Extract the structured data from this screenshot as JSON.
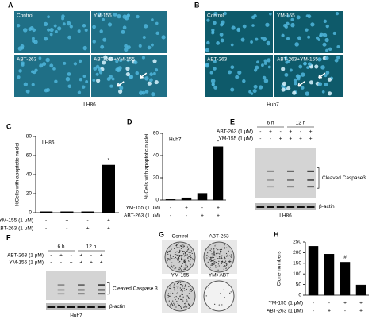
{
  "panel_labels": [
    "A",
    "B",
    "C",
    "D",
    "E",
    "F",
    "G",
    "H"
  ],
  "A": {
    "images": [
      "Control",
      "YM-155",
      "ABT-263",
      "ABT-263+YM-155"
    ],
    "cell_line": "LH86"
  },
  "B": {
    "images": [
      "Control",
      "YM-155",
      "ABT-263",
      "ABT-263+YM-155"
    ],
    "cell_line": "Huh7"
  },
  "E": {
    "treatments": [
      {
        "name": "ABT-263 (1 μM)",
        "signs": [
          "-",
          "+",
          "-",
          "+",
          "-",
          "+"
        ]
      },
      {
        "name": "YM-155 (1 μM)",
        "signs": [
          "-",
          "-",
          "+",
          "+",
          "+",
          "+"
        ]
      }
    ],
    "timepoints": [
      "6 h",
      "12 h"
    ],
    "bands": [
      "Cleaved Caspase3",
      "β-actin"
    ],
    "cell_line": "LH86"
  },
  "F": {
    "treatments": [
      {
        "name": "ABT-263 (1 μM)",
        "signs": [
          "-",
          "+",
          "-",
          "+",
          "-",
          "+"
        ]
      },
      {
        "name": "YM-155 (1 μM)",
        "signs": [
          "-",
          "-",
          "+",
          "+",
          "+",
          "+"
        ]
      }
    ],
    "timepoints": [
      "6 h",
      "12 h"
    ],
    "bands": [
      "Cleaved Caspase 3",
      "β-actin"
    ],
    "cell_line": "Huh7"
  },
  "G": {
    "plates": [
      "Control",
      "ABT-263",
      "YM-155",
      "YM+ABT"
    ]
  },
  "chart_data": [
    {
      "type": "bar",
      "inset_label": "LH86",
      "y_label": "%Cells with apoptotic nuclei",
      "categories": [
        null,
        null,
        null,
        null
      ],
      "values": [
        1,
        1,
        1,
        50
      ],
      "value_annotations": [
        null,
        null,
        null,
        "*"
      ],
      "color": "#000000",
      "ylim": [
        0,
        80
      ],
      "yticks": [
        0,
        20,
        40,
        60,
        80
      ],
      "conditions": [
        {
          "name": "YM-155 (1 μM)",
          "signs": [
            "-",
            "+",
            "-",
            "+"
          ]
        },
        {
          "name": "ABT-263 (1 μM)",
          "signs": [
            "-",
            "-",
            "+",
            "+"
          ]
        }
      ]
    },
    {
      "type": "bar",
      "inset_label": "Huh7",
      "y_label": "% Cells with apoptotic nuclei",
      "categories": [
        null,
        null,
        null,
        null
      ],
      "values": [
        0.5,
        2,
        6,
        48
      ],
      "value_annotations": [
        null,
        null,
        null,
        "*"
      ],
      "color": "#000000",
      "ylim": [
        0,
        60
      ],
      "yticks": [
        0,
        20,
        40,
        60
      ],
      "conditions": [
        {
          "name": "YM-155 (1 μM)",
          "signs": [
            "-",
            "+",
            "-",
            "+"
          ]
        },
        {
          "name": "ABT-263 (1 μM)",
          "signs": [
            "-",
            "-",
            "+",
            "+"
          ]
        }
      ]
    },
    {
      "type": "bar",
      "y_label": "Clone numbers",
      "categories": [
        null,
        null,
        null,
        null
      ],
      "values": [
        230,
        193,
        155,
        48
      ],
      "value_annotations": [
        null,
        null,
        "#",
        null
      ],
      "color": "#000000",
      "ylim": [
        0,
        250
      ],
      "yticks": [
        0,
        50,
        100,
        150,
        200,
        250
      ],
      "conditions": [
        {
          "name": "YM-155 (1 μM)",
          "signs": [
            "-",
            "-",
            "+",
            "+"
          ]
        },
        {
          "name": "ABT-263 (1 μM)",
          "signs": [
            "-",
            "+",
            "-",
            "+"
          ]
        }
      ]
    }
  ]
}
